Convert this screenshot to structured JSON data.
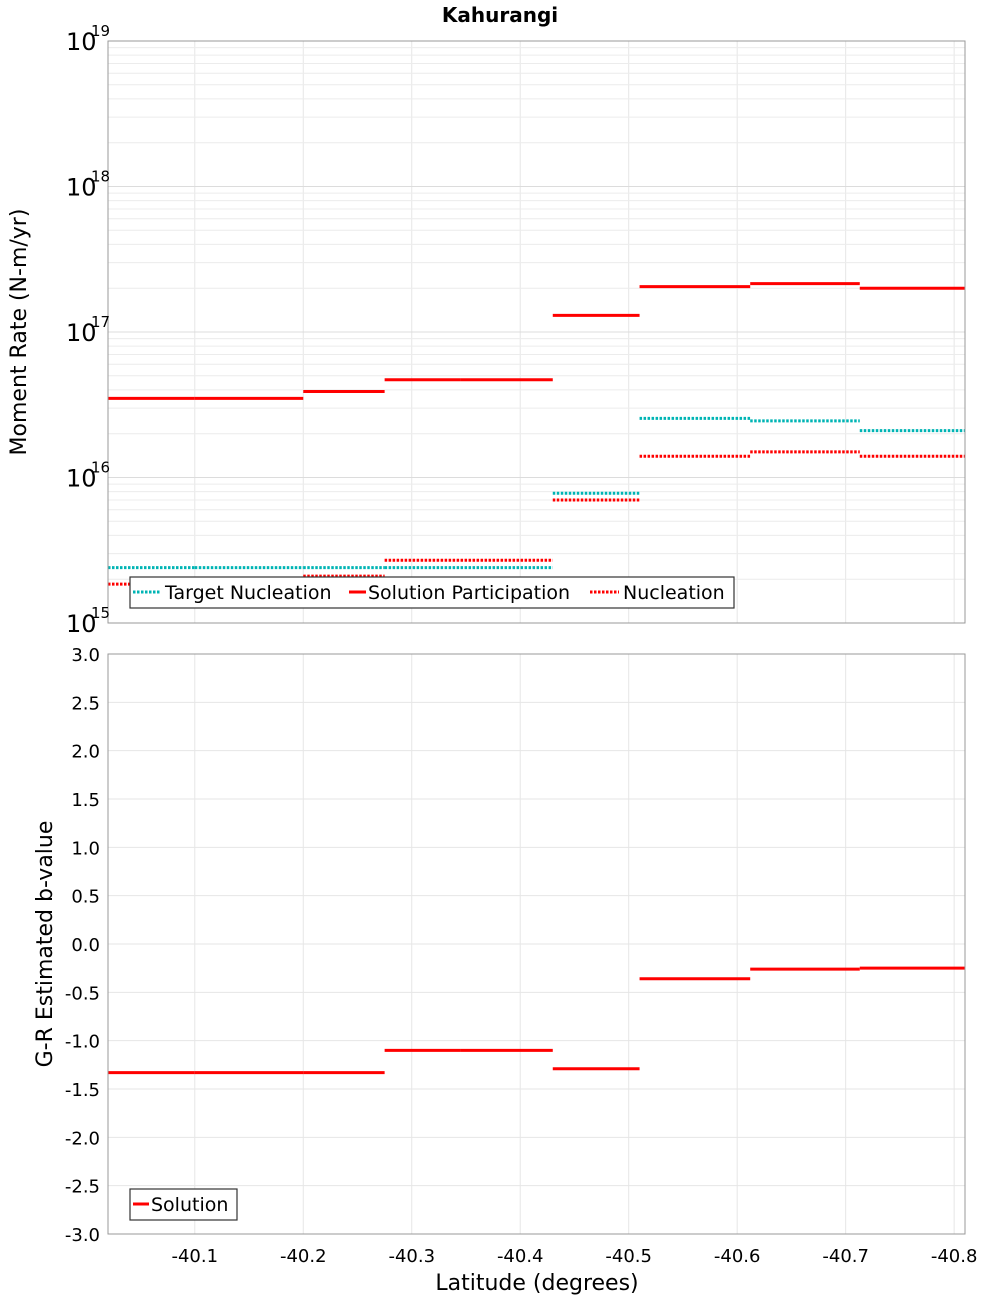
{
  "chart_data": [
    {
      "type": "line",
      "title": "Kahurangi",
      "ylabel": "Moment Rate (N-m/yr)",
      "xlabel": "",
      "yscale": "log",
      "ylim": [
        1000000000000000.0,
        1e+19
      ],
      "xlim": [
        -40.02,
        -40.81
      ],
      "grid": true,
      "legend_position": "bottom-left",
      "y_ticks": [
        {
          "base": "10",
          "exp": "15",
          "value": 1000000000000000.0
        },
        {
          "base": "10",
          "exp": "16",
          "value": 1e+16
        },
        {
          "base": "10",
          "exp": "17",
          "value": 1e+17
        },
        {
          "base": "10",
          "exp": "18",
          "value": 1e+18
        },
        {
          "base": "10",
          "exp": "19",
          "value": 1e+19
        }
      ],
      "series": [
        {
          "name": "Target Nucleation",
          "color": "#00b4b4",
          "style": "dotted",
          "segments": [
            {
              "x0": -40.02,
              "x1": -40.1,
              "y": 2400000000000000.0
            },
            {
              "x0": -40.1,
              "x1": -40.2,
              "y": 2400000000000000.0
            },
            {
              "x0": -40.2,
              "x1": -40.275,
              "y": 2400000000000000.0
            },
            {
              "x0": -40.275,
              "x1": -40.345,
              "y": 2400000000000000.0
            },
            {
              "x0": -40.345,
              "x1": -40.43,
              "y": 2400000000000000.0
            },
            {
              "x0": -40.43,
              "x1": -40.51,
              "y": 7800000000000000.0
            },
            {
              "x0": -40.51,
              "x1": -40.612,
              "y": 2.55e+16
            },
            {
              "x0": -40.612,
              "x1": -40.713,
              "y": 2.45e+16
            },
            {
              "x0": -40.713,
              "x1": -40.81,
              "y": 2.1e+16
            }
          ]
        },
        {
          "name": "Solution Participation",
          "color": "#ff0000",
          "style": "solid",
          "segments": [
            {
              "x0": -40.02,
              "x1": -40.1,
              "y": 3.5e+16
            },
            {
              "x0": -40.1,
              "x1": -40.2,
              "y": 3.5e+16
            },
            {
              "x0": -40.2,
              "x1": -40.275,
              "y": 3.9e+16
            },
            {
              "x0": -40.275,
              "x1": -40.345,
              "y": 4.7e+16
            },
            {
              "x0": -40.345,
              "x1": -40.43,
              "y": 4.7e+16
            },
            {
              "x0": -40.43,
              "x1": -40.51,
              "y": 1.3e+17
            },
            {
              "x0": -40.51,
              "x1": -40.612,
              "y": 2.05e+17
            },
            {
              "x0": -40.612,
              "x1": -40.713,
              "y": 2.15e+17
            },
            {
              "x0": -40.713,
              "x1": -40.81,
              "y": 2e+17
            }
          ]
        },
        {
          "name": "Nucleation",
          "color": "#ff0000",
          "style": "dotted",
          "segments": [
            {
              "x0": -40.02,
              "x1": -40.1,
              "y": 1850000000000000.0
            },
            {
              "x0": -40.1,
              "x1": -40.2,
              "y": 1850000000000000.0
            },
            {
              "x0": -40.2,
              "x1": -40.275,
              "y": 2100000000000000.0
            },
            {
              "x0": -40.275,
              "x1": -40.345,
              "y": 2700000000000000.0
            },
            {
              "x0": -40.345,
              "x1": -40.43,
              "y": 2700000000000000.0
            },
            {
              "x0": -40.43,
              "x1": -40.51,
              "y": 7000000000000000.0
            },
            {
              "x0": -40.51,
              "x1": -40.612,
              "y": 1.4e+16
            },
            {
              "x0": -40.612,
              "x1": -40.713,
              "y": 1.5e+16
            },
            {
              "x0": -40.713,
              "x1": -40.81,
              "y": 1.4e+16
            }
          ]
        }
      ]
    },
    {
      "type": "line",
      "title": "",
      "ylabel": "G-R Estimated b-value",
      "xlabel": "Latitude (degrees)",
      "ylim": [
        -3.0,
        3.0
      ],
      "xlim": [
        -40.02,
        -40.81
      ],
      "grid": true,
      "legend_position": "bottom-left",
      "y_ticks": [
        "3.0",
        "2.5",
        "2.0",
        "1.5",
        "1.0",
        "0.5",
        "0.0",
        "-0.5",
        "-1.0",
        "-1.5",
        "-2.0",
        "-2.5",
        "-3.0"
      ],
      "x_ticks": [
        "-40.1",
        "-40.2",
        "-40.3",
        "-40.4",
        "-40.5",
        "-40.6",
        "-40.7",
        "-40.8"
      ],
      "series": [
        {
          "name": "Solution",
          "color": "#ff0000",
          "style": "solid",
          "segments": [
            {
              "x0": -40.02,
              "x1": -40.1,
              "y": -1.33
            },
            {
              "x0": -40.1,
              "x1": -40.2,
              "y": -1.33
            },
            {
              "x0": -40.2,
              "x1": -40.275,
              "y": -1.33
            },
            {
              "x0": -40.275,
              "x1": -40.345,
              "y": -1.1
            },
            {
              "x0": -40.345,
              "x1": -40.43,
              "y": -1.1
            },
            {
              "x0": -40.43,
              "x1": -40.51,
              "y": -1.29
            },
            {
              "x0": -40.51,
              "x1": -40.612,
              "y": -0.36
            },
            {
              "x0": -40.612,
              "x1": -40.713,
              "y": -0.26
            },
            {
              "x0": -40.713,
              "x1": -40.81,
              "y": -0.25
            }
          ]
        }
      ]
    }
  ]
}
